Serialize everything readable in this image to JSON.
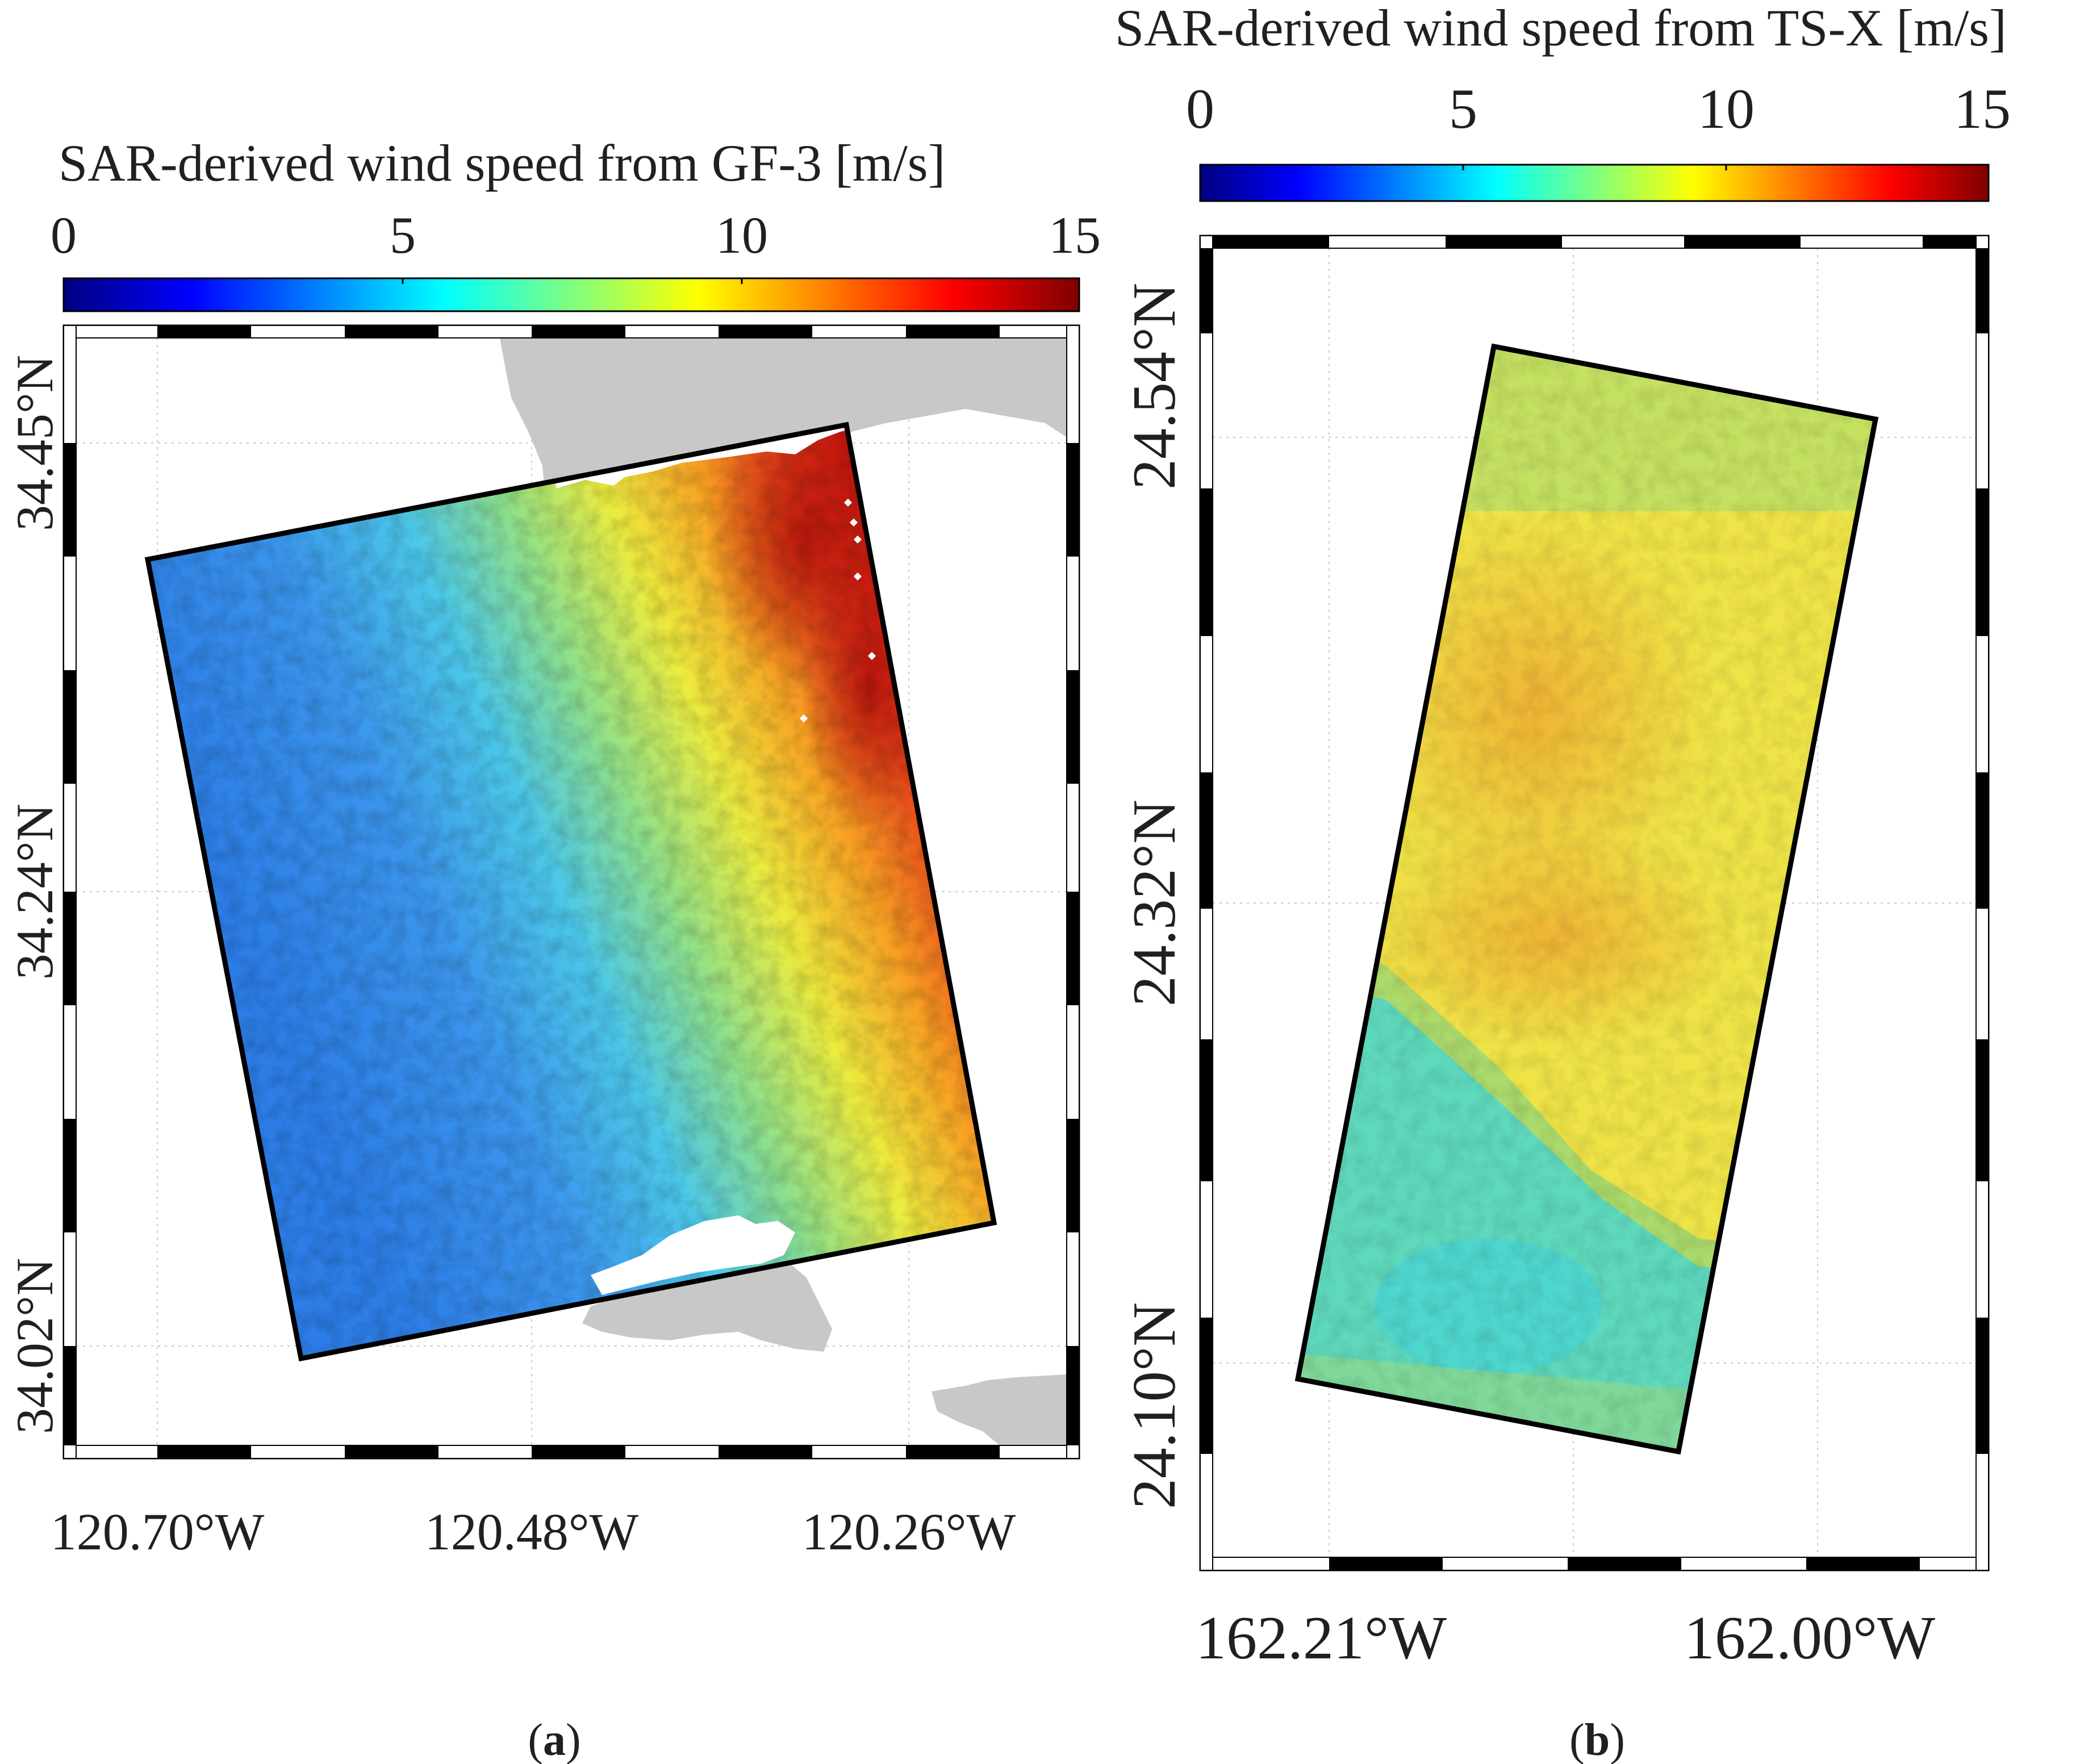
{
  "panel_a": {
    "colorbar_title": "SAR-derived wind speed from GF-3 [m/s]",
    "colorbar_ticks": [
      "0",
      "5",
      "10",
      "15"
    ],
    "colorbar_range": [
      0,
      15
    ],
    "lat_labels": [
      "34.45°N",
      "34.24°N",
      "34.02°N"
    ],
    "lon_labels": [
      "120.70°W",
      "120.48°W",
      "120.26°W"
    ],
    "caption": "(a)",
    "caption_letter": "a"
  },
  "panel_b": {
    "colorbar_title": "SAR-derived wind speed from TS-X [m/s]",
    "colorbar_ticks": [
      "0",
      "5",
      "10",
      "15"
    ],
    "colorbar_range": [
      0,
      15
    ],
    "lat_labels": [
      "24.54°N",
      "24.32°N",
      "24.10°N"
    ],
    "lon_labels": [
      "162.21°W",
      "162.00°W"
    ],
    "caption": "(b)",
    "caption_letter": "b"
  },
  "colors": {
    "colormap": [
      "#00007f",
      "#0000ff",
      "#007fff",
      "#00ffff",
      "#7fff7f",
      "#ffff00",
      "#ff7f00",
      "#ff0000",
      "#7f0000"
    ],
    "land": "#c8c8c8",
    "frame": "#000000"
  }
}
